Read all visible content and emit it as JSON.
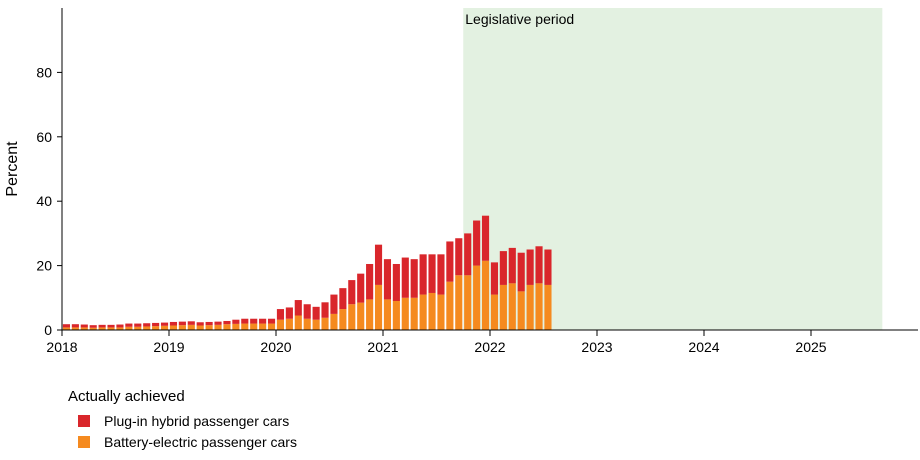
{
  "chart_data": {
    "type": "bar",
    "stacked": true,
    "ylabel": "Percent",
    "ylim": [
      0,
      100
    ],
    "yticks": [
      "0",
      "20",
      "40",
      "60",
      "80"
    ],
    "xlim": [
      "2018-01",
      "2025-12"
    ],
    "xticks": [
      "2018",
      "2019",
      "2020",
      "2021",
      "2022",
      "2023",
      "2024",
      "2025"
    ],
    "shaded_region": {
      "label": "Legislative period",
      "start": "2021-10",
      "end": "2025-09",
      "color": "#e3f1e1"
    },
    "legend": {
      "title": "Actually achieved",
      "position": "bottom-left"
    },
    "x": [
      "2018-01",
      "2018-02",
      "2018-03",
      "2018-04",
      "2018-05",
      "2018-06",
      "2018-07",
      "2018-08",
      "2018-09",
      "2018-10",
      "2018-11",
      "2018-12",
      "2019-01",
      "2019-02",
      "2019-03",
      "2019-04",
      "2019-05",
      "2019-06",
      "2019-07",
      "2019-08",
      "2019-09",
      "2019-10",
      "2019-11",
      "2019-12",
      "2020-01",
      "2020-02",
      "2020-03",
      "2020-04",
      "2020-05",
      "2020-06",
      "2020-07",
      "2020-08",
      "2020-09",
      "2020-10",
      "2020-11",
      "2020-12",
      "2021-01",
      "2021-02",
      "2021-03",
      "2021-04",
      "2021-05",
      "2021-06",
      "2021-07",
      "2021-08",
      "2021-09",
      "2021-10",
      "2021-11",
      "2021-12",
      "2022-01",
      "2022-02",
      "2022-03",
      "2022-04",
      "2022-05",
      "2022-06",
      "2022-07"
    ],
    "series": [
      {
        "name": "Battery-electric passenger cars",
        "color": "#f58a1f",
        "values": [
          0.8,
          0.8,
          0.8,
          0.7,
          0.8,
          0.8,
          0.8,
          1.0,
          1.0,
          1.1,
          1.2,
          1.3,
          1.4,
          1.5,
          1.6,
          1.4,
          1.5,
          1.6,
          1.8,
          1.9,
          2.0,
          2.0,
          2.0,
          2.0,
          3.2,
          3.5,
          4.5,
          3.5,
          3.2,
          3.8,
          5.0,
          6.5,
          8.0,
          8.5,
          9.5,
          14.0,
          9.5,
          9.0,
          10.0,
          10.0,
          11.0,
          11.5,
          11.0,
          15.0,
          17.0,
          17.0,
          20.0,
          21.5,
          11.0,
          14.0,
          14.5,
          12.0,
          14.0,
          14.5,
          14.0
        ]
      },
      {
        "name": "Plug-in hybrid passenger cars",
        "color": "#d9262b",
        "values": [
          1.0,
          1.0,
          0.9,
          0.8,
          0.8,
          0.8,
          0.9,
          1.0,
          1.0,
          1.0,
          1.0,
          1.0,
          1.1,
          1.1,
          1.1,
          1.0,
          1.0,
          1.0,
          1.0,
          1.3,
          1.5,
          1.5,
          1.5,
          1.5,
          3.3,
          3.5,
          4.8,
          4.5,
          4.0,
          4.8,
          6.0,
          6.5,
          7.5,
          9.0,
          11.0,
          12.5,
          12.5,
          11.5,
          12.5,
          12.0,
          12.5,
          12.0,
          12.5,
          12.5,
          11.5,
          13.0,
          14.0,
          14.0,
          10.0,
          10.5,
          11.0,
          12.0,
          11.0,
          11.5,
          11.0
        ]
      }
    ]
  }
}
